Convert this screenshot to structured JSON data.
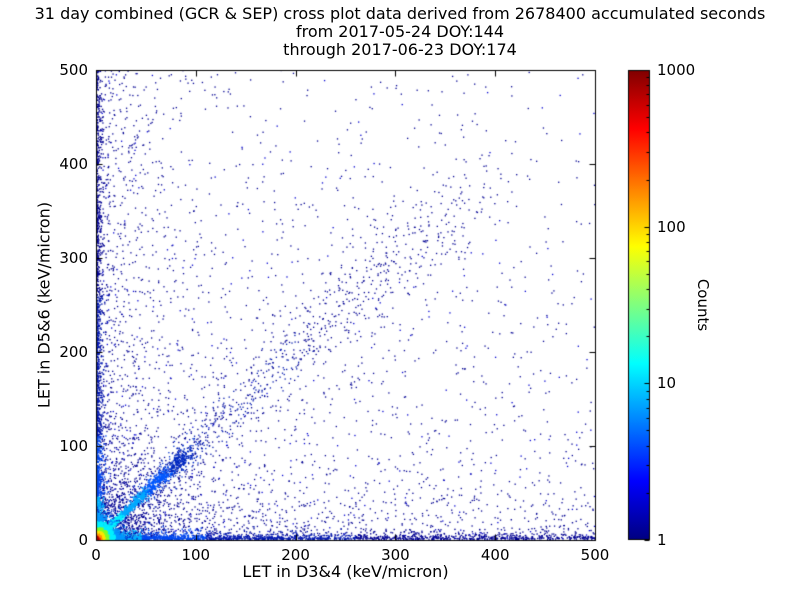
{
  "title": {
    "line1": "31 day combined (GCR & SEP) cross plot data derived from 2678400 accumulated seconds",
    "line2": "from 2017-05-24 DOY:144",
    "line3": "through 2017-06-23 DOY:174"
  },
  "chart_data": {
    "type": "scatter",
    "subtype": "2d-histogram cross plot (log-color density)",
    "title": "31 day combined (GCR & SEP) cross plot data derived from 2678400 accumulated seconds",
    "subtitle1": "from 2017-05-24 DOY:144",
    "subtitle2": "through 2017-06-23 DOY:174",
    "xlabel": "LET in D3&4 (keV/micron)",
    "ylabel": "LET in D5&6 (keV/micron)",
    "xlim": [
      0,
      500
    ],
    "ylim": [
      0,
      500
    ],
    "xticks": [
      0,
      100,
      200,
      300,
      400,
      500
    ],
    "yticks": [
      0,
      100,
      200,
      300,
      400,
      500
    ],
    "grid": false,
    "colorbar": {
      "label": "Counts",
      "scale": "log",
      "min": 1,
      "max": 1000,
      "ticks": [
        1,
        10,
        100,
        1000
      ],
      "colormap": "jet",
      "gradient_stops": [
        {
          "pos": 0.0,
          "color": "#000080"
        },
        {
          "pos": 0.125,
          "color": "#0000ff"
        },
        {
          "pos": 0.375,
          "color": "#00ffff"
        },
        {
          "pos": 0.625,
          "color": "#ffff00"
        },
        {
          "pos": 0.875,
          "color": "#ff0000"
        },
        {
          "pos": 1.0,
          "color": "#800000"
        }
      ]
    },
    "features": [
      "hot core at origin (red/orange/yellow, counts up to ~1000) within ~10 keV/micron of (0,0)",
      "bright green-cyan diagonal ridge y=x from origin to ~90 keV/micron, continuing as sparse blue diagonal scatter to ~390",
      "dense band of counts hugging the x axis (y~0) extending to x=500, green/cyan near origin fading to dark blue",
      "dense band of counts hugging the y axis (x~0) extending to y=500, green/cyan near origin fading to dark blue",
      "fan of low-count blue points spraying from the origin out to ~130 keV/micron",
      "sparse single-count dark-blue points scattered over the lower-left triangle and around the diagonal"
    ],
    "generator": {
      "seed": 20170524,
      "point_size": 1.3,
      "populations": [
        {
          "name": "sparse-field",
          "type": "field",
          "n": 2400,
          "size": 1.3,
          "params": {
            "powx": 2.2,
            "powy": 2.2,
            "len": 500
          },
          "colors": [
            {
              "upto": 99999,
              "color": "#000092"
            }
          ]
        },
        {
          "name": "sparse-field-bright",
          "type": "field",
          "n": 500,
          "size": 1.3,
          "params": {
            "powx": 2.6,
            "powy": 2.6,
            "len": 500
          },
          "colors": [
            {
              "upto": 99999,
              "color": "#0000d2"
            }
          ]
        },
        {
          "name": "left-column-spray",
          "type": "band_y",
          "n": 550,
          "size": 1.3,
          "params": {
            "pow": 1.6,
            "len": 500,
            "thick": 35
          },
          "colors": [
            {
              "upto": 99999,
              "color": "#000092"
            }
          ]
        },
        {
          "name": "bottom-row-spray",
          "type": "band_x",
          "n": 450,
          "size": 1.3,
          "params": {
            "pow": 1.6,
            "len": 500,
            "thick": 30
          },
          "colors": [
            {
              "upto": 99999,
              "color": "#000092"
            }
          ]
        },
        {
          "name": "origin-fan",
          "type": "fan",
          "n": 1000,
          "size": 1.3,
          "params": {
            "a0": 3,
            "a1": 87,
            "scale": 42
          },
          "colors": [
            {
              "upto": 35,
              "color": "#0022b4"
            },
            {
              "upto": 99999,
              "color": "#000092"
            }
          ]
        },
        {
          "name": "diagonal-upper-sparse",
          "type": "diagonal",
          "n": 700,
          "size": 1.3,
          "params": {
            "t0": 40,
            "t1": 395,
            "pow": 1.5,
            "spread0": 2.5,
            "spreadk": 0.055
          },
          "colors": [
            {
              "upto": 100,
              "color": "#0030cc"
            },
            {
              "upto": 200,
              "color": "#0018ae"
            },
            {
              "upto": 99999,
              "color": "#000092"
            }
          ]
        },
        {
          "name": "diagonal-halo",
          "type": "diagonal",
          "n": 350,
          "size": 1.3,
          "params": {
            "t0": 30,
            "t1": 320,
            "pow": 1.4,
            "spread0": 8,
            "spreadk": 0.11
          },
          "colors": [
            {
              "upto": 99999,
              "color": "#000092"
            }
          ]
        },
        {
          "name": "x-axis-band",
          "type": "band_x",
          "n": 2100,
          "size": 1.4,
          "params": {
            "pow": 2.9,
            "len": 500,
            "thick": 2.4
          },
          "colors": [
            {
              "upto": 8,
              "color": "#58ff30"
            },
            {
              "upto": 20,
              "color": "#00ffd8"
            },
            {
              "upto": 45,
              "color": "#00b0ff"
            },
            {
              "upto": 110,
              "color": "#0048f0"
            },
            {
              "upto": 260,
              "color": "#0018b0"
            },
            {
              "upto": 99999,
              "color": "#000092"
            }
          ]
        },
        {
          "name": "y-axis-band",
          "type": "band_y",
          "n": 1800,
          "size": 1.4,
          "params": {
            "pow": 2.7,
            "len": 500,
            "thick": 2.2
          },
          "colors": [
            {
              "upto": 8,
              "color": "#58ff30"
            },
            {
              "upto": 20,
              "color": "#00ffd8"
            },
            {
              "upto": 45,
              "color": "#00b0ff"
            },
            {
              "upto": 110,
              "color": "#0048f0"
            },
            {
              "upto": 260,
              "color": "#0018b0"
            },
            {
              "upto": 99999,
              "color": "#000092"
            }
          ]
        },
        {
          "name": "diagonal-ridge",
          "type": "diagonal",
          "n": 1400,
          "size": 1.5,
          "params": {
            "t0": 0,
            "t1": 95,
            "pow": 2.1,
            "spread0": 0.7,
            "spreadk": 0.035
          },
          "colors": [
            {
              "upto": 10,
              "color": "#58ff40"
            },
            {
              "upto": 26,
              "color": "#00f0ff"
            },
            {
              "upto": 50,
              "color": "#00aaff"
            },
            {
              "upto": 72,
              "color": "#0058ff"
            },
            {
              "upto": 99999,
              "color": "#0028c0"
            }
          ]
        },
        {
          "name": "origin-core",
          "type": "origin_blob",
          "n": 2800,
          "size": 1.6,
          "params": {
            "scale": 5.2
          },
          "colors": [
            {
              "upto": 2.5,
              "color": "#aa0000"
            },
            {
              "upto": 4,
              "color": "#ff2c00"
            },
            {
              "upto": 6,
              "color": "#ff9600"
            },
            {
              "upto": 9,
              "color": "#ffe600"
            },
            {
              "upto": 13,
              "color": "#80ff28"
            },
            {
              "upto": 19,
              "color": "#00f0ff"
            },
            {
              "upto": 28,
              "color": "#0096ff"
            },
            {
              "upto": 45,
              "color": "#0034d0"
            },
            {
              "upto": 99999,
              "color": "#000098"
            }
          ]
        }
      ]
    }
  }
}
